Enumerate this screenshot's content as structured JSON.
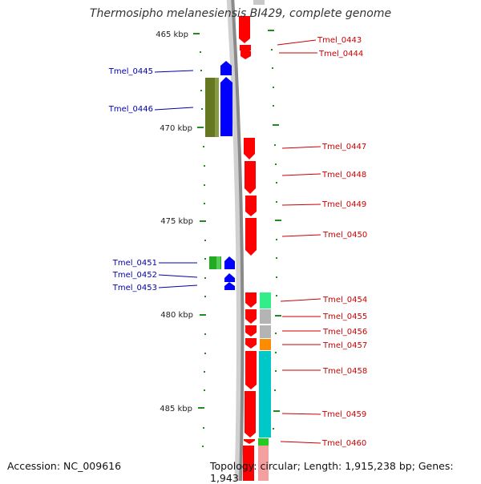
{
  "title": "Thermosipho melanesiensis BI429, complete genome",
  "accession_text": "Accession: NC_009616",
  "topology_text": "Topology: circular; Length: 1,915,238 bp; Genes: 1,943",
  "colors": {
    "forward": "#ff0000",
    "reverse": "#0000ff",
    "forward_label": "#cc0000",
    "reverse_label": "#0000aa",
    "tick": "#228b22",
    "backbone": "#888888"
  },
  "kbp_labels": [
    "465 kbp",
    "470 kbp",
    "475 kbp",
    "480 kbp",
    "485 kbp"
  ],
  "forward_genes": [
    "Tmel_0443",
    "Tmel_0444",
    "Tmel_0447",
    "Tmel_0448",
    "Tmel_0449",
    "Tmel_0450",
    "Tmel_0454",
    "Tmel_0455",
    "Tmel_0456",
    "Tmel_0457",
    "Tmel_0458",
    "Tmel_0459",
    "Tmel_0460"
  ],
  "reverse_genes": [
    "Tmel_0445",
    "Tmel_0446",
    "Tmel_0451",
    "Tmel_0452",
    "Tmel_0453"
  ]
}
